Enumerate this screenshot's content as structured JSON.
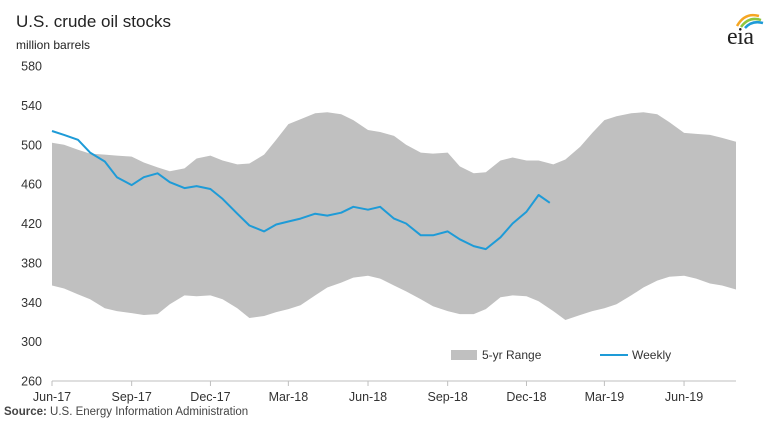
{
  "title": "U.S. crude oil stocks",
  "unit": "million barrels",
  "logo_text": "eia",
  "source": {
    "label": "Source:",
    "text": "U.S. Energy Information Administration"
  },
  "colors": {
    "range": "#c0c0c0",
    "weekly": "#1e9bd7",
    "axis": "#bfbfbf",
    "logo_accent": "#f5a623",
    "logo_green": "#8cc63f"
  },
  "legend": {
    "range_label": "5-yr Range",
    "weekly_label": "Weekly",
    "placement": "bottom-right"
  },
  "chart_data": {
    "type": "area",
    "title": "U.S. crude oil stocks",
    "ylabel": "million barrels",
    "xlabel": "",
    "ylim": [
      260,
      580
    ],
    "yticks": [
      260,
      300,
      340,
      380,
      420,
      460,
      500,
      540,
      580
    ],
    "xlim": [
      "2017-06-01",
      "2019-07-31"
    ],
    "xticks": [
      {
        "date": "2017-06-01",
        "label": "Jun-17"
      },
      {
        "date": "2017-09-01",
        "label": "Sep-17"
      },
      {
        "date": "2017-12-01",
        "label": "Dec-17"
      },
      {
        "date": "2018-03-01",
        "label": "Mar-18"
      },
      {
        "date": "2018-06-01",
        "label": "Jun-18"
      },
      {
        "date": "2018-09-01",
        "label": "Sep-18"
      },
      {
        "date": "2018-12-01",
        "label": "Dec-18"
      },
      {
        "date": "2019-03-01",
        "label": "Mar-19"
      },
      {
        "date": "2019-06-01",
        "label": "Jun-19"
      }
    ],
    "grid": false,
    "series": [
      {
        "name": "5-yr Range",
        "kind": "band",
        "x": [
          "2017-06-01",
          "2017-06-15",
          "2017-07-01",
          "2017-07-15",
          "2017-08-01",
          "2017-08-15",
          "2017-09-01",
          "2017-09-15",
          "2017-10-01",
          "2017-10-15",
          "2017-11-01",
          "2017-11-15",
          "2017-12-01",
          "2017-12-15",
          "2018-01-01",
          "2018-01-15",
          "2018-02-01",
          "2018-02-15",
          "2018-03-01",
          "2018-03-15",
          "2018-04-01",
          "2018-04-15",
          "2018-05-01",
          "2018-05-15",
          "2018-06-01",
          "2018-06-15",
          "2018-07-01",
          "2018-07-15",
          "2018-08-01",
          "2018-08-15",
          "2018-09-01",
          "2018-09-15",
          "2018-10-01",
          "2018-10-15",
          "2018-11-01",
          "2018-11-15",
          "2018-12-01",
          "2018-12-15",
          "2019-01-01",
          "2019-01-15",
          "2019-02-01",
          "2019-02-15",
          "2019-03-01",
          "2019-03-15",
          "2019-04-01",
          "2019-04-15",
          "2019-05-01",
          "2019-05-15",
          "2019-06-01",
          "2019-06-15",
          "2019-07-01",
          "2019-07-15",
          "2019-07-31"
        ],
        "upper": [
          502,
          500,
          495,
          491,
          490,
          489,
          488,
          482,
          477,
          473,
          476,
          486,
          489,
          484,
          480,
          481,
          490,
          505,
          521,
          526,
          532,
          533,
          531,
          525,
          515,
          513,
          509,
          500,
          492,
          491,
          492,
          478,
          471,
          472,
          484,
          487,
          484,
          484,
          480,
          485,
          498,
          512,
          525,
          529,
          532,
          533,
          531,
          523,
          512,
          511,
          510,
          507,
          503
        ],
        "lower": [
          357,
          354,
          348,
          343,
          334,
          331,
          329,
          327,
          328,
          338,
          347,
          346,
          347,
          343,
          334,
          324,
          326,
          330,
          333,
          337,
          347,
          355,
          360,
          365,
          367,
          364,
          357,
          351,
          343,
          336,
          331,
          328,
          328,
          333,
          345,
          347,
          346,
          341,
          331,
          322,
          327,
          331,
          334,
          338,
          347,
          355,
          362,
          366,
          367,
          364,
          359,
          357,
          353
        ]
      },
      {
        "name": "Weekly",
        "kind": "line",
        "x": [
          "2017-06-01",
          "2017-06-15",
          "2017-07-01",
          "2017-07-15",
          "2017-08-01",
          "2017-08-15",
          "2017-09-01",
          "2017-09-15",
          "2017-10-01",
          "2017-10-15",
          "2017-11-01",
          "2017-11-15",
          "2017-12-01",
          "2017-12-15",
          "2018-01-01",
          "2018-01-15",
          "2018-02-01",
          "2018-02-15",
          "2018-03-01",
          "2018-03-15",
          "2018-04-01",
          "2018-04-15",
          "2018-05-01",
          "2018-05-15",
          "2018-06-01",
          "2018-06-15",
          "2018-07-01",
          "2018-07-15",
          "2018-08-01",
          "2018-08-15",
          "2018-09-01",
          "2018-09-15",
          "2018-10-01",
          "2018-10-15",
          "2018-11-01",
          "2018-11-15",
          "2018-12-01",
          "2018-12-15",
          "2018-12-28"
        ],
        "values": [
          514,
          510,
          505,
          492,
          483,
          467,
          459,
          467,
          471,
          462,
          456,
          458,
          455,
          445,
          430,
          418,
          412,
          419,
          422,
          425,
          430,
          428,
          431,
          437,
          434,
          437,
          425,
          420,
          408,
          408,
          412,
          404,
          397,
          394,
          406,
          420,
          432,
          449,
          441
        ]
      }
    ]
  }
}
